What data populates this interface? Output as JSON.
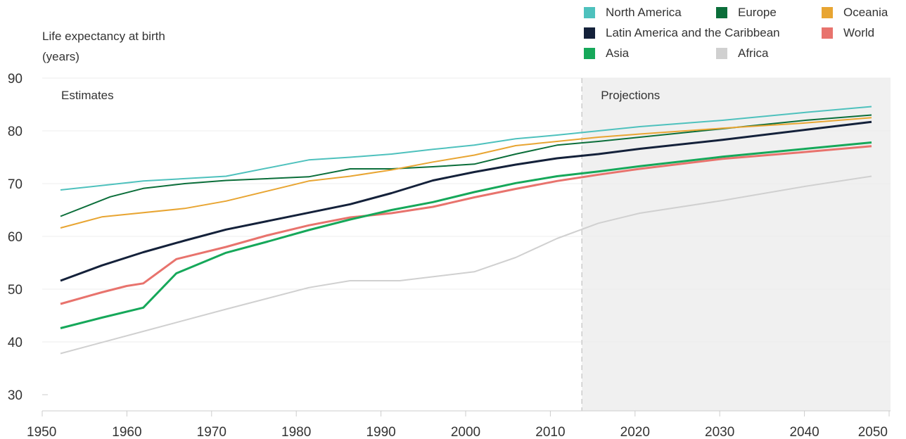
{
  "chart_data": {
    "type": "line",
    "ylabel_line1": "Life expectancy at birth",
    "ylabel_line2": "(years)",
    "xlim": [
      1950,
      2050
    ],
    "ylim": [
      30,
      90
    ],
    "x_ticks": [
      1950,
      1960,
      1970,
      1980,
      1990,
      2000,
      2010,
      2020,
      2030,
      2040,
      2050
    ],
    "y_ticks": [
      30,
      40,
      50,
      60,
      70,
      80,
      90
    ],
    "grid": "horizontal",
    "legend_position": "top-right",
    "regions": [
      {
        "label": "Estimates",
        "x_start": 1950,
        "x_end": 2015
      },
      {
        "label": "Projections",
        "x_start": 2015,
        "x_end": 2050
      }
    ],
    "series": [
      {
        "name": "North America",
        "color": "#4ec1bd",
        "points": [
          [
            1952,
            68.8
          ],
          [
            1962,
            70.5
          ],
          [
            1972,
            71.4
          ],
          [
            1982,
            74.5
          ],
          [
            1987,
            75.0
          ],
          [
            1992,
            75.6
          ],
          [
            1997,
            76.5
          ],
          [
            2002,
            77.3
          ],
          [
            2007,
            78.5
          ],
          [
            2012,
            79.2
          ],
          [
            2017,
            80.0
          ],
          [
            2022,
            80.8
          ],
          [
            2032,
            82.0
          ],
          [
            2042,
            83.5
          ],
          [
            2050,
            84.6
          ]
        ]
      },
      {
        "name": "Europe",
        "color": "#0b6e3a",
        "points": [
          [
            1952,
            63.8
          ],
          [
            1958,
            67.5
          ],
          [
            1962,
            69.1
          ],
          [
            1967,
            70.0
          ],
          [
            1972,
            70.6
          ],
          [
            1982,
            71.3
          ],
          [
            1987,
            72.8
          ],
          [
            1992,
            72.8
          ],
          [
            1997,
            73.2
          ],
          [
            2002,
            73.7
          ],
          [
            2007,
            75.6
          ],
          [
            2012,
            77.3
          ],
          [
            2017,
            78.0
          ],
          [
            2022,
            78.8
          ],
          [
            2032,
            80.4
          ],
          [
            2042,
            82.0
          ],
          [
            2050,
            83.0
          ]
        ]
      },
      {
        "name": "Oceania",
        "color": "#e8a532",
        "points": [
          [
            1952,
            61.6
          ],
          [
            1957,
            63.7
          ],
          [
            1967,
            65.3
          ],
          [
            1972,
            66.7
          ],
          [
            1982,
            70.5
          ],
          [
            1987,
            71.4
          ],
          [
            1992,
            72.6
          ],
          [
            1997,
            74.1
          ],
          [
            2002,
            75.4
          ],
          [
            2007,
            77.2
          ],
          [
            2012,
            78.0
          ],
          [
            2017,
            78.8
          ],
          [
            2022,
            79.4
          ],
          [
            2032,
            80.5
          ],
          [
            2042,
            81.5
          ],
          [
            2050,
            82.5
          ]
        ]
      },
      {
        "name": "Latin America and the Caribbean",
        "color": "#14213a",
        "points": [
          [
            1952,
            51.6
          ],
          [
            1957,
            54.5
          ],
          [
            1962,
            57.0
          ],
          [
            1967,
            59.2
          ],
          [
            1972,
            61.3
          ],
          [
            1982,
            64.5
          ],
          [
            1987,
            66.1
          ],
          [
            1992,
            68.2
          ],
          [
            1997,
            70.6
          ],
          [
            2002,
            72.2
          ],
          [
            2007,
            73.6
          ],
          [
            2012,
            74.8
          ],
          [
            2017,
            75.6
          ],
          [
            2022,
            76.6
          ],
          [
            2032,
            78.3
          ],
          [
            2042,
            80.2
          ],
          [
            2050,
            81.7
          ]
        ]
      },
      {
        "name": "World",
        "color": "#e8736d",
        "points": [
          [
            1952,
            47.2
          ],
          [
            1957,
            49.4
          ],
          [
            1960,
            50.6
          ],
          [
            1962,
            51.1
          ],
          [
            1966,
            55.7
          ],
          [
            1972,
            58.0
          ],
          [
            1977,
            60.2
          ],
          [
            1982,
            62.1
          ],
          [
            1987,
            63.6
          ],
          [
            1992,
            64.4
          ],
          [
            1997,
            65.6
          ],
          [
            2002,
            67.4
          ],
          [
            2007,
            69.0
          ],
          [
            2012,
            70.5
          ],
          [
            2017,
            71.7
          ],
          [
            2022,
            72.8
          ],
          [
            2032,
            74.7
          ],
          [
            2042,
            76.0
          ],
          [
            2050,
            77.1
          ]
        ]
      },
      {
        "name": "Asia",
        "color": "#16a85a",
        "points": [
          [
            1952,
            42.6
          ],
          [
            1957,
            44.6
          ],
          [
            1962,
            46.5
          ],
          [
            1966,
            53.0
          ],
          [
            1972,
            56.9
          ],
          [
            1977,
            59.0
          ],
          [
            1982,
            61.2
          ],
          [
            1987,
            63.2
          ],
          [
            1992,
            65.0
          ],
          [
            1997,
            66.5
          ],
          [
            2002,
            68.4
          ],
          [
            2007,
            70.1
          ],
          [
            2012,
            71.4
          ],
          [
            2017,
            72.3
          ],
          [
            2022,
            73.3
          ],
          [
            2032,
            75.1
          ],
          [
            2042,
            76.6
          ],
          [
            2050,
            77.8
          ]
        ]
      },
      {
        "name": "Africa",
        "color": "#d0d0d0",
        "points": [
          [
            1952,
            37.8
          ],
          [
            1962,
            42.0
          ],
          [
            1972,
            46.2
          ],
          [
            1982,
            50.3
          ],
          [
            1987,
            51.6
          ],
          [
            1993,
            51.6
          ],
          [
            2002,
            53.3
          ],
          [
            2007,
            56.0
          ],
          [
            2012,
            59.6
          ],
          [
            2017,
            62.5
          ],
          [
            2022,
            64.4
          ],
          [
            2032,
            66.8
          ],
          [
            2042,
            69.5
          ],
          [
            2050,
            71.4
          ]
        ]
      }
    ]
  }
}
